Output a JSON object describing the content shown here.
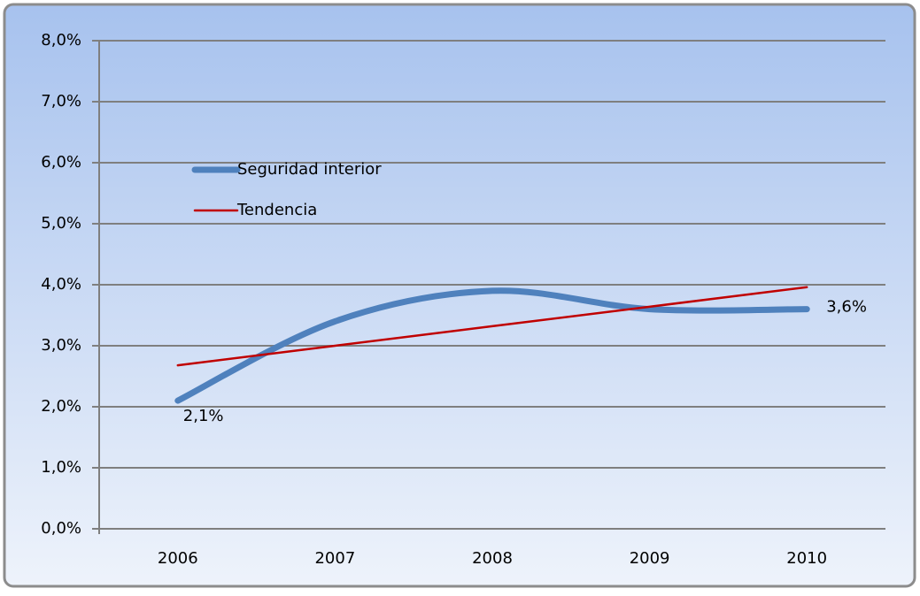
{
  "chart_data": {
    "type": "line",
    "categories": [
      "2006",
      "2007",
      "2008",
      "2009",
      "2010"
    ],
    "series": [
      {
        "name": "Seguridad interior",
        "color": "#4f81bd",
        "values": [
          2.1,
          3.4,
          3.9,
          3.6,
          3.6
        ],
        "value_labels": [
          "2,1%",
          null,
          null,
          null,
          "3,6%"
        ],
        "smooth": true
      },
      {
        "name": "Tendencia",
        "color": "#c00000",
        "values": [
          2.68,
          3.0,
          3.32,
          3.64,
          3.96
        ],
        "smooth": false
      }
    ],
    "ylim": [
      0,
      8
    ],
    "yticks": [
      {
        "value": 0,
        "label": "0,0%"
      },
      {
        "value": 1,
        "label": "1,0%"
      },
      {
        "value": 2,
        "label": "2,0%"
      },
      {
        "value": 3,
        "label": "3,0%"
      },
      {
        "value": 4,
        "label": "4,0%"
      },
      {
        "value": 5,
        "label": "5,0%"
      },
      {
        "value": 6,
        "label": "6,0%"
      },
      {
        "value": 7,
        "label": "7,0%"
      },
      {
        "value": 8,
        "label": "8,0%"
      }
    ],
    "grid": true,
    "legend": "upper left"
  }
}
